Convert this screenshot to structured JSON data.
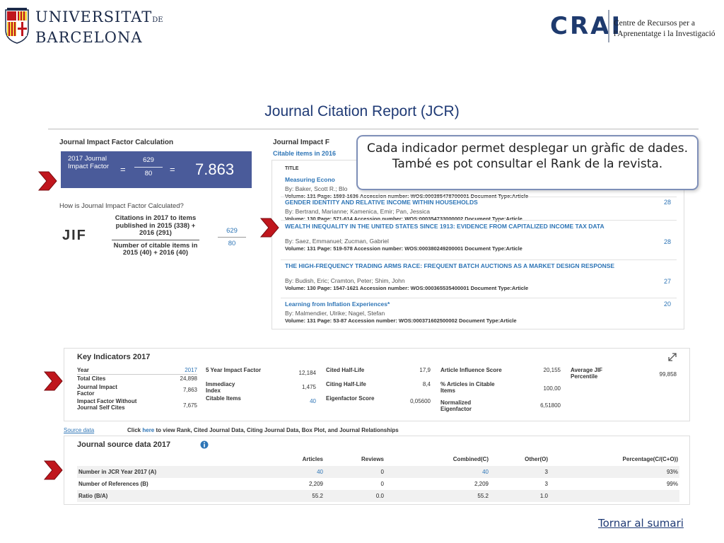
{
  "header": {
    "university_line1": "UNIVERSITAT",
    "university_line1_suffix": "DE",
    "university_line2": "BARCELONA",
    "crai_mark": "CRAI",
    "crai_line1": "Centre de Recursos per a",
    "crai_line2": "l'Aprenentatge i la Investigació"
  },
  "page_title": "Journal Citation Report (JCR)",
  "callout": "Cada indicador permet desplegar un gràfic de dades. També es pot consultar el Rank de la revista.",
  "calc": {
    "heading": "Journal Impact Factor Calculation",
    "box_label": "2017 Journal Impact Factor",
    "numerator": "629",
    "denominator": "80",
    "equals": "=",
    "value": "7.863",
    "question": "How is Journal Impact Factor Calculated?",
    "jif": "JIF",
    "formula_num": "Citations in 2017 to items published in 2015 (338) + 2016 (291)",
    "formula_den": "Number of citable items in 2015 (40) + 2016 (40)",
    "mini_num": "629",
    "mini_den": "80"
  },
  "citable": {
    "heading": "Journal Impact F",
    "subheading": "Citable items in 2016",
    "col_title": "TITLE",
    "articles": [
      {
        "title": "Measuring Econo",
        "authors": "By: Baker, Scott R.; Blo",
        "meta": "Volume: 131    Page: 1593-1636    Accession number: WOS:000385478700001    Document Type:Article",
        "count": ""
      },
      {
        "title": "GENDER IDENTITY AND RELATIVE INCOME WITHIN HOUSEHOLDS",
        "authors": "By: Bertrand, Marianne; Kamenica, Emir; Pan, Jessica",
        "meta": "Volume: 130    Page: 571-614    Accession number: WOS:000354733000002    Document Type:Article",
        "count": "28"
      },
      {
        "title": "WEALTH INEQUALITY IN THE UNITED STATES SINCE 1913: EVIDENCE FROM CAPITALIZED INCOME TAX DATA",
        "authors": "By: Saez, Emmanuel; Zucman, Gabriel",
        "meta": "Volume: 131    Page: 519-578    Accession number: WOS:000380249200001    Document Type:Article",
        "count": "28"
      },
      {
        "title": "THE HIGH-FREQUENCY TRADING ARMS RACE: FREQUENT BATCH AUCTIONS AS A MARKET DESIGN RESPONSE",
        "authors": "By: Budish, Eric; Cramton, Peter; Shim, John",
        "meta": "Volume: 130    Page: 1547-1621    Accession number: WOS:000365535400001    Document Type:Article",
        "count": "27"
      },
      {
        "title": "Learning from Inflation Experiences*",
        "authors": "By: Malmendier, Ulrike; Nagel, Stefan",
        "meta": "Volume: 131    Page: 53-87    Accession number: WOS:000371602500002    Document Type:Article",
        "count": "20"
      }
    ]
  },
  "key_indicators": {
    "title": "Key Indicators 2017",
    "col1": [
      {
        "label": "Year",
        "value": "2017",
        "link": true
      },
      {
        "label": "Total Cites",
        "value": "24,898",
        "link": false
      },
      {
        "label": "Journal Impact Factor",
        "value": "7,863",
        "link": false
      },
      {
        "label": "Impact Factor Without Journal Self Cites",
        "value": "7,675",
        "link": false
      }
    ],
    "col2": [
      {
        "label": "5 Year Impact Factor",
        "value": "12,184",
        "link": false
      },
      {
        "label": "Immediacy Index",
        "value": "1,475",
        "link": false
      },
      {
        "label": "Citable Items",
        "value": "40",
        "link": true
      }
    ],
    "col3": [
      {
        "label": "Cited Half-Life",
        "value": "17,9",
        "link": false
      },
      {
        "label": "Citing Half-Life",
        "value": "8,4",
        "link": false
      },
      {
        "label": "Eigenfactor Score",
        "value": "0,05600",
        "link": false
      }
    ],
    "col4": [
      {
        "label": "Article Influence Score",
        "value": "20,155",
        "link": false
      },
      {
        "label": "% Articles in Citable Items",
        "value": "100,00",
        "link": false
      },
      {
        "label": "Normalized Eigenfactor",
        "value": "6,51800",
        "link": false
      }
    ],
    "col5": [
      {
        "label": "Average JIF Percentile",
        "value": "99,858",
        "link": false
      }
    ]
  },
  "source_data": {
    "link": "Source data",
    "click_prefix": "Click",
    "click_here": "here",
    "click_suffix": "to view Rank, Cited Journal Data, Citing Journal Data, Box Plot, and Journal Relationships"
  },
  "journal_source": {
    "title": "Journal source data 2017",
    "headers": [
      "Articles",
      "Reviews",
      "Combined(C)",
      "Other(O)",
      "Percentage(C/(C+O))"
    ],
    "rows": [
      {
        "label": "Number in JCR Year 2017 (A)",
        "values": [
          "40",
          "0",
          "40",
          "3",
          "93%"
        ]
      },
      {
        "label": "Number of References (B)",
        "values": [
          "2,209",
          "0",
          "2,209",
          "3",
          "99%"
        ]
      },
      {
        "label": "Ratio (B/A)",
        "values": [
          "55.2",
          "0.0",
          "55.2",
          "1.0",
          ""
        ]
      }
    ]
  },
  "back_link": "Tornar al sumari",
  "colors": {
    "ub_navy": "#1c2b4a",
    "title_blue": "#1f3a75",
    "jif_box": "#4a5b9a",
    "link_blue": "#2e75b6",
    "arrow_red": "#c0161d"
  }
}
